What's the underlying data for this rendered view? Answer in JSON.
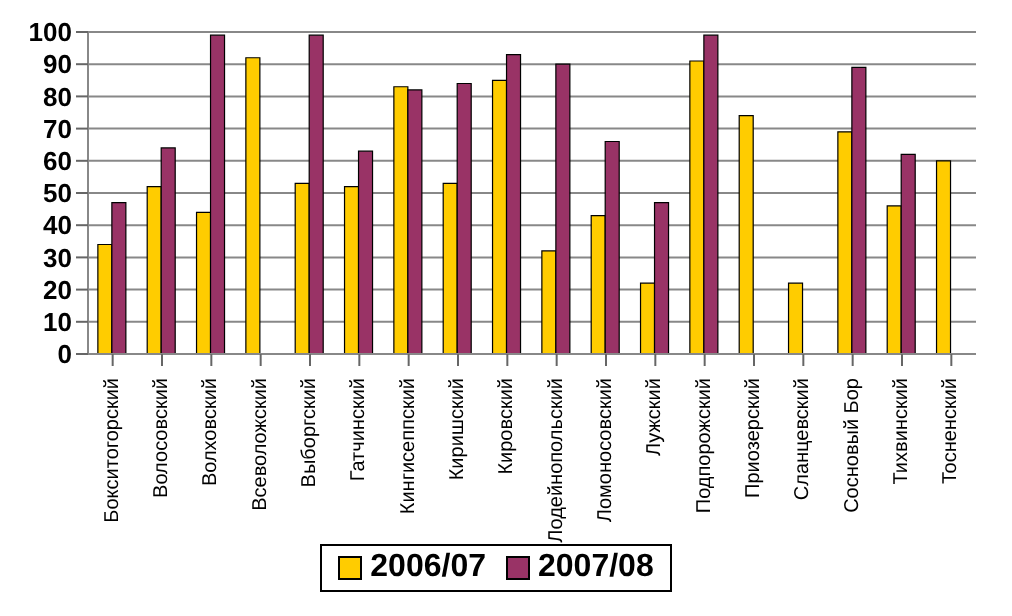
{
  "chart_data": {
    "type": "bar",
    "categories": [
      "Бокситогорский",
      "Волосовский",
      "Волховский",
      "Всеволожский",
      "Выборгский",
      "Гатчинский",
      "Кингисеппский",
      "Киришский",
      "Кировский",
      "Лодейнопольский",
      "Ломоносовский",
      "Лужский",
      "Подпорожский",
      "Приозерский",
      "Сланцевский",
      "Сосновый Бор",
      "Тихвинский",
      "Тосненский"
    ],
    "series": [
      {
        "name": "2006/07",
        "color": "#ffcc00",
        "values": [
          34,
          52,
          44,
          92,
          53,
          52,
          83,
          53,
          85,
          32,
          43,
          22,
          91,
          74,
          22,
          69,
          46,
          60
        ]
      },
      {
        "name": "2007/08",
        "color": "#993366",
        "values": [
          47,
          64,
          99,
          0,
          99,
          63,
          82,
          84,
          93,
          90,
          66,
          47,
          99,
          0,
          0,
          89,
          62,
          0
        ]
      }
    ],
    "ylim": [
      0,
      100
    ],
    "yticks": [
      0,
      10,
      20,
      30,
      40,
      50,
      60,
      70,
      80,
      90,
      100
    ],
    "grid": "y",
    "legend": "bottom"
  }
}
